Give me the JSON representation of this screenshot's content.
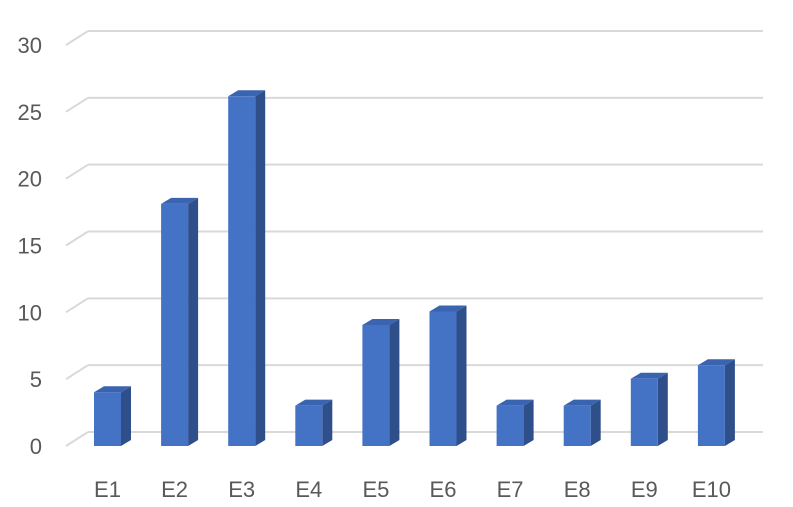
{
  "chart_data": {
    "type": "bar",
    "style": "3d-column",
    "categories": [
      "E1",
      "E2",
      "E3",
      "E4",
      "E5",
      "E6",
      "E7",
      "E8",
      "E9",
      "E10"
    ],
    "series": [
      {
        "values": [
          4,
          18,
          26,
          3,
          9,
          10,
          3,
          3,
          5,
          6
        ]
      }
    ],
    "yticks": [
      "0",
      "5",
      "10",
      "15",
      "20",
      "25",
      "30"
    ],
    "ylim": [
      0,
      30
    ],
    "grid": true,
    "legend": "none",
    "colors": {
      "front": "#4472c4",
      "side": "#2f4f8a",
      "top": "#3a64b0",
      "grid": "#d9d9d9",
      "text": "#595959"
    }
  }
}
